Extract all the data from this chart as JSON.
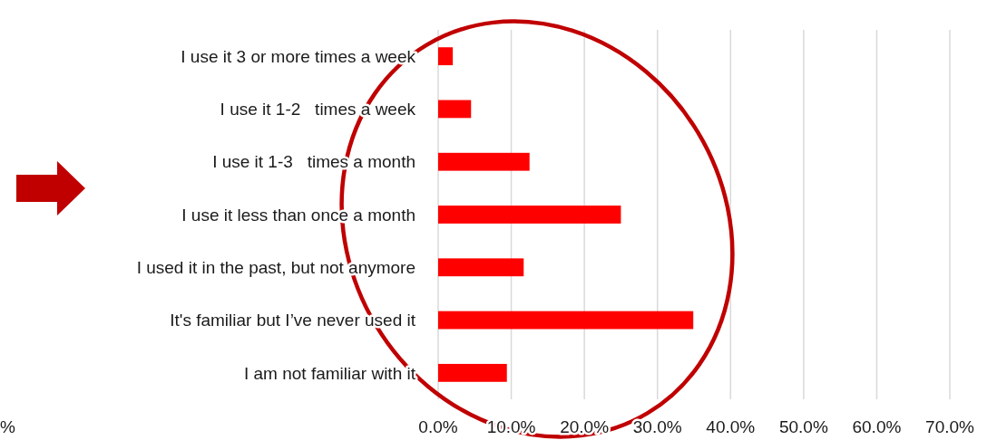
{
  "chart_data": {
    "type": "bar",
    "orientation": "horizontal",
    "categories": [
      "I use it 3 or more times a week",
      "I use it 1-2   times a week",
      "I use it 1-3   times a month",
      "I use it less than once a month",
      "I used it in the past, but not anymore",
      "It's familiar but I’ve never used it",
      "I am not familiar with it"
    ],
    "values": [
      2.0,
      4.5,
      12.5,
      25.0,
      11.7,
      34.9,
      9.4
    ],
    "color": "#ff0000",
    "xlim": [
      0,
      70
    ],
    "xticks": [
      {
        "value": 0,
        "label": "0.0%"
      },
      {
        "value": 10,
        "label": "10.0%"
      },
      {
        "value": 20,
        "label": "20.0%"
      },
      {
        "value": 30,
        "label": "30.0%"
      },
      {
        "value": 40,
        "label": "40.0%"
      },
      {
        "value": 50,
        "label": "50.0%"
      },
      {
        "value": 60,
        "label": "60.0%"
      },
      {
        "value": 70,
        "label": "70.0%"
      }
    ],
    "grid": "x",
    "annotations": [
      "%"
    ]
  }
}
